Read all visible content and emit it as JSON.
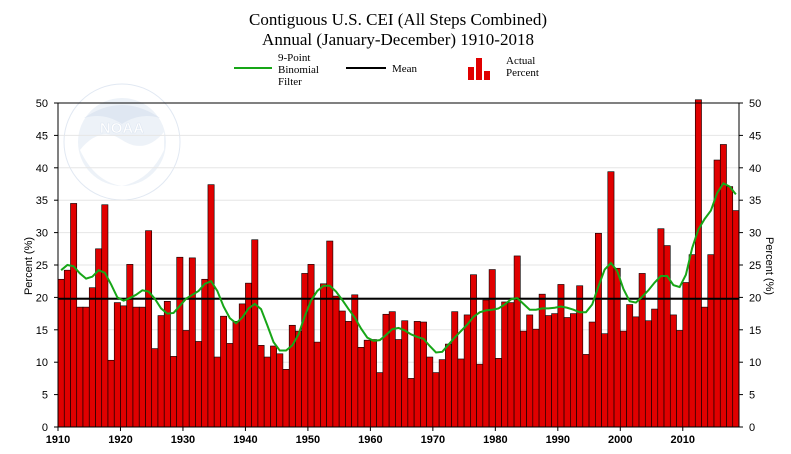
{
  "chart_data": {
    "type": "bar",
    "title": "Contiguous U.S. CEI (All Steps Combined)",
    "subtitle": "Annual (January-December) 1910-2018",
    "ylabel_left": "Percent (%)",
    "ylabel_right": "Percent (%)",
    "ylim": [
      0,
      50
    ],
    "yticks": [
      0,
      5,
      10,
      15,
      20,
      25,
      30,
      35,
      40,
      45,
      50
    ],
    "xlim": [
      1910,
      2018
    ],
    "xticks": [
      1910,
      1920,
      1930,
      1940,
      1950,
      1960,
      1970,
      1980,
      1990,
      2000,
      2010
    ],
    "grid": true,
    "legend_placement": "top-center",
    "legend": {
      "filter_label": "9-Point\nBinomial\nFilter",
      "mean_label": "Mean",
      "actual_label": "Actual\nPercent"
    },
    "colors": {
      "bars": "#e00000",
      "filter": "#17a617",
      "mean": "#000000",
      "bar_edge": "#000000"
    },
    "years": [
      1910,
      1911,
      1912,
      1913,
      1914,
      1915,
      1916,
      1917,
      1918,
      1919,
      1920,
      1921,
      1922,
      1923,
      1924,
      1925,
      1926,
      1927,
      1928,
      1929,
      1930,
      1931,
      1932,
      1933,
      1934,
      1935,
      1936,
      1937,
      1938,
      1939,
      1940,
      1941,
      1942,
      1943,
      1944,
      1945,
      1946,
      1947,
      1948,
      1949,
      1950,
      1951,
      1952,
      1953,
      1954,
      1955,
      1956,
      1957,
      1958,
      1959,
      1960,
      1961,
      1962,
      1963,
      1964,
      1965,
      1966,
      1967,
      1968,
      1969,
      1970,
      1971,
      1972,
      1973,
      1974,
      1975,
      1976,
      1977,
      1978,
      1979,
      1980,
      1981,
      1982,
      1983,
      1984,
      1985,
      1986,
      1987,
      1988,
      1989,
      1990,
      1991,
      1992,
      1993,
      1994,
      1995,
      1996,
      1997,
      1998,
      1999,
      2000,
      2001,
      2002,
      2003,
      2004,
      2005,
      2006,
      2007,
      2008,
      2009,
      2010,
      2011,
      2012,
      2013,
      2014,
      2015,
      2016,
      2017,
      2018
    ],
    "series": [
      {
        "name": "Actual Percent",
        "kind": "bar",
        "values": [
          22.8,
          24.2,
          34.5,
          18.5,
          18.5,
          21.5,
          27.5,
          34.3,
          10.3,
          19.2,
          18.7,
          25.1,
          18.5,
          18.5,
          30.3,
          12.1,
          17.2,
          19.4,
          10.9,
          26.2,
          14.9,
          26.1,
          13.2,
          22.8,
          37.4,
          10.8,
          17.1,
          12.9,
          16.3,
          19.0,
          22.2,
          28.9,
          12.6,
          10.8,
          12.5,
          11.3,
          8.9,
          15.7,
          14.8,
          23.7,
          25.1,
          13.1,
          22.1,
          28.7,
          20.2,
          17.9,
          16.3,
          20.4,
          12.3,
          13.4,
          13.5,
          8.4,
          17.4,
          17.8,
          13.5,
          16.4,
          7.5,
          16.3,
          16.2,
          10.8,
          8.4,
          10.4,
          12.8,
          17.8,
          10.5,
          17.3,
          23.5,
          9.7,
          19.6,
          24.3,
          10.6,
          19.3,
          19.2,
          26.4,
          14.8,
          17.3,
          15.1,
          20.5,
          17.2,
          17.5,
          22.0,
          16.9,
          17.5,
          21.8,
          11.2,
          16.2,
          29.9,
          14.4,
          39.4,
          24.5,
          14.8,
          18.9,
          17.0,
          23.7,
          16.4,
          18.2,
          30.6,
          28.0,
          17.3,
          14.9,
          22.3,
          26.6,
          50.5,
          18.5,
          26.6,
          41.2,
          43.6,
          37.1,
          33.4
        ]
      },
      {
        "name": "9-Point Binomial Filter",
        "kind": "line",
        "values": [
          24.2,
          25.0,
          24.8,
          23.7,
          22.9,
          23.2,
          24.2,
          23.8,
          22.0,
          20.0,
          19.5,
          19.9,
          20.4,
          21.1,
          20.9,
          19.8,
          18.3,
          17.5,
          17.6,
          18.7,
          19.8,
          20.4,
          21.0,
          22.1,
          22.5,
          21.0,
          18.6,
          16.8,
          16.0,
          16.9,
          18.3,
          19.0,
          18.2,
          15.7,
          13.1,
          11.8,
          11.8,
          12.6,
          14.3,
          17.1,
          19.5,
          21.0,
          21.8,
          21.8,
          20.9,
          19.6,
          18.2,
          16.9,
          15.2,
          13.8,
          13.3,
          13.4,
          14.2,
          15.1,
          15.3,
          14.9,
          14.3,
          13.9,
          13.6,
          12.5,
          11.5,
          11.6,
          12.7,
          13.8,
          14.8,
          15.8,
          17.0,
          17.7,
          18.0,
          18.1,
          18.3,
          18.9,
          19.7,
          19.9,
          19.0,
          18.1,
          18.1,
          18.3,
          18.3,
          18.4,
          18.6,
          18.4,
          18.1,
          17.7,
          17.7,
          18.9,
          21.7,
          24.3,
          25.3,
          24.1,
          21.3,
          19.4,
          19.2,
          20.1,
          21.1,
          22.3,
          23.3,
          23.3,
          21.9,
          21.6,
          23.5,
          27.6,
          30.5,
          32.1,
          33.4,
          36.1,
          37.6,
          37.1,
          35.9
        ]
      }
    ],
    "mean": 19.8
  }
}
